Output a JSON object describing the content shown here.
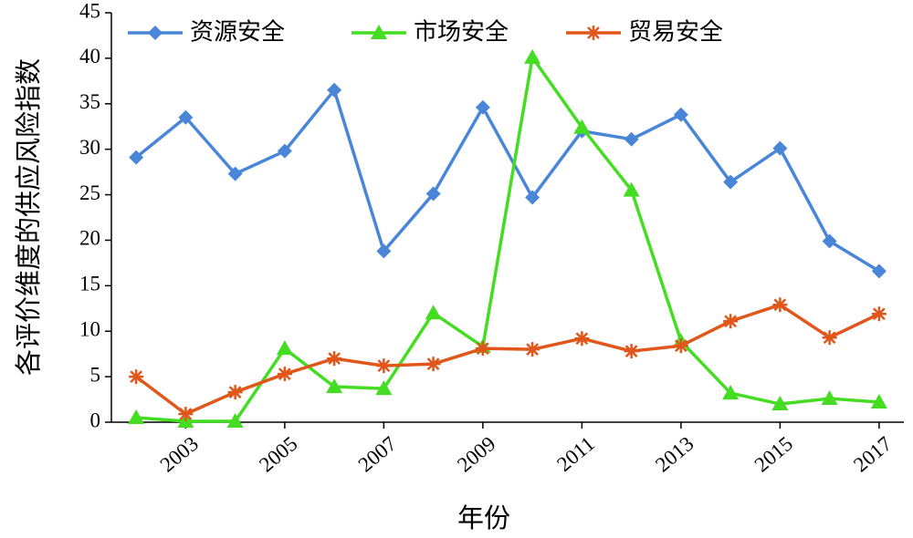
{
  "chart_data": {
    "type": "line",
    "x_label": "年份",
    "y_label": "各评价维度的供应风险指数",
    "x": [
      2002,
      2003,
      2004,
      2005,
      2006,
      2007,
      2008,
      2009,
      2010,
      2011,
      2012,
      2013,
      2014,
      2015,
      2016,
      2017
    ],
    "series": [
      {
        "name": "资源安全",
        "color": "#4a86d8",
        "marker": "diamond",
        "values": [
          29.1,
          33.5,
          27.3,
          29.8,
          36.5,
          18.8,
          25.1,
          34.6,
          24.7,
          32.0,
          31.1,
          33.8,
          26.4,
          30.1,
          19.9,
          16.6
        ]
      },
      {
        "name": "市场安全",
        "color": "#44dd22",
        "marker": "triangle",
        "values": [
          0.5,
          0.1,
          0.1,
          8.1,
          3.9,
          3.7,
          12.0,
          8.3,
          40.1,
          32.4,
          25.5,
          8.9,
          3.2,
          2.0,
          2.6,
          2.2
        ]
      },
      {
        "name": "贸易安全",
        "color": "#e0561b",
        "marker": "asterisk",
        "values": [
          5.0,
          0.9,
          3.3,
          5.3,
          7.0,
          6.2,
          6.4,
          8.1,
          8.0,
          9.2,
          7.8,
          8.4,
          11.1,
          12.9,
          9.3,
          11.9
        ]
      }
    ],
    "xlim": [
      2001.5,
      2017.5
    ],
    "xticks": [
      2003,
      2005,
      2007,
      2009,
      2011,
      2013,
      2015,
      2017
    ],
    "ylim": [
      0,
      45
    ],
    "yticks": [
      0,
      5,
      10,
      15,
      20,
      25,
      30,
      35,
      40,
      45
    ],
    "legend": "top"
  }
}
